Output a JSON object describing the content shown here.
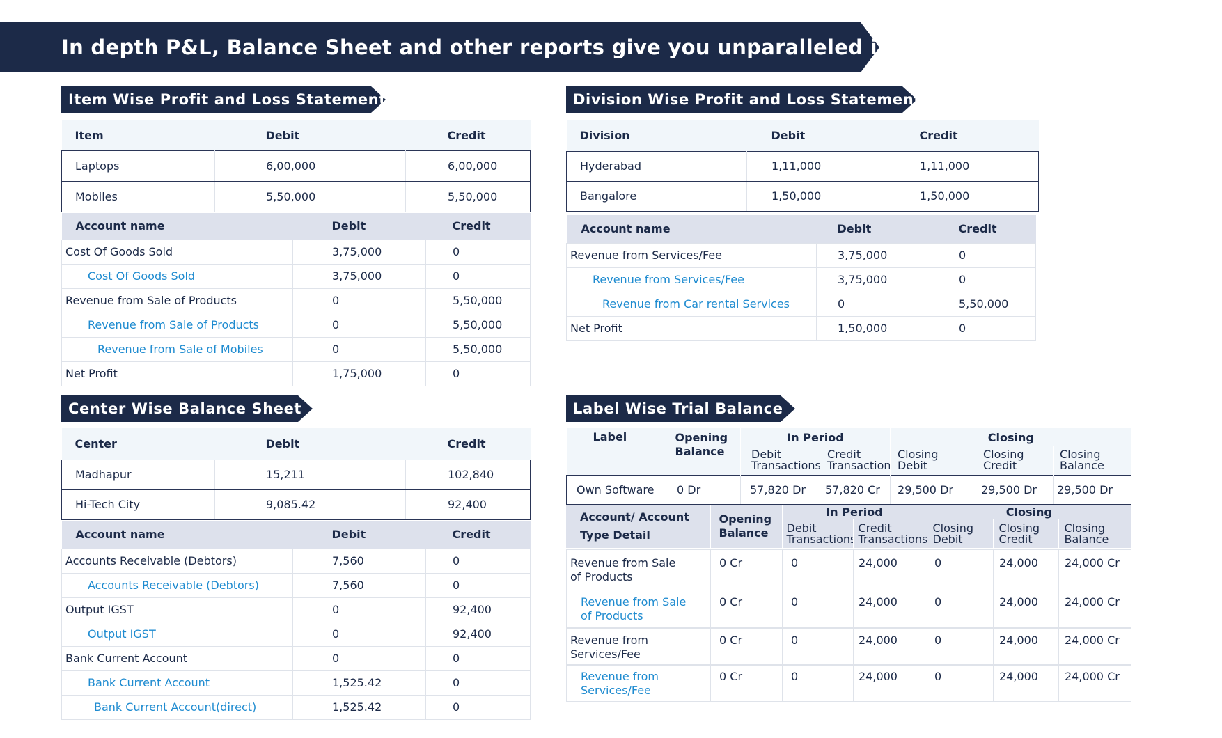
{
  "banner": {
    "title": "In depth P&L, Balance Sheet and other reports give you unparalleled insight"
  },
  "item_pl": {
    "title": "Item Wise Profit and Loss Statement",
    "headers": [
      "Item",
      "Debit",
      "Credit"
    ],
    "rows": [
      [
        "Laptops",
        "6,00,000",
        "6,00,000"
      ],
      [
        "Mobiles",
        "5,50,000",
        "5,50,000"
      ]
    ],
    "acc_headers": [
      "Account name",
      "Debit",
      "Credit"
    ],
    "acc_rows": [
      [
        "Cost Of Goods Sold",
        "3,75,000",
        "0"
      ],
      [
        "Cost Of Goods Sold",
        "3,75,000",
        "0"
      ],
      [
        "Revenue from Sale of Products",
        "0",
        "5,50,000"
      ],
      [
        "Revenue from Sale of Products",
        "0",
        "5,50,000"
      ],
      [
        "Revenue from Sale of Mobiles",
        "0",
        "5,50,000"
      ],
      [
        "Net Profit",
        "1,75,000",
        "0"
      ]
    ]
  },
  "division_pl": {
    "title": "Division Wise Profit and Loss Statement",
    "headers": [
      "Division",
      "Debit",
      "Credit"
    ],
    "rows": [
      [
        "Hyderabad",
        "1,11,000",
        "1,11,000"
      ],
      [
        "Bangalore",
        "1,50,000",
        "1,50,000"
      ]
    ],
    "acc_headers": [
      "Account name",
      "Debit",
      "Credit"
    ],
    "acc_rows": [
      [
        "Revenue from Services/Fee",
        "3,75,000",
        "0"
      ],
      [
        "Revenue from Services/Fee",
        "3,75,000",
        "0"
      ],
      [
        "Revenue from Car rental Services",
        "0",
        "5,50,000"
      ],
      [
        "Net Profit",
        "1,50,000",
        "0"
      ]
    ]
  },
  "center_bs": {
    "title": "Center Wise Balance Sheet",
    "headers": [
      "Center",
      "Debit",
      "Credit"
    ],
    "rows": [
      [
        "Madhapur",
        "15,211",
        "102,840"
      ],
      [
        "Hi-Tech City",
        "9,085.42",
        "92,400"
      ]
    ],
    "acc_headers": [
      "Account name",
      "Debit",
      "Credit"
    ],
    "acc_rows": [
      [
        "Accounts Receivable (Debtors)",
        "7,560",
        "0"
      ],
      [
        "Accounts Receivable (Debtors)",
        "7,560",
        "0"
      ],
      [
        "Output IGST",
        "0",
        "92,400"
      ],
      [
        "Output IGST",
        "0",
        "92,400"
      ],
      [
        "Bank Current Account",
        "0",
        "0"
      ],
      [
        "Bank Current Account",
        "1,525.42",
        "0"
      ],
      [
        "Bank Current Account(direct)",
        "1,525.42",
        "0"
      ]
    ]
  },
  "label_tb": {
    "title": "Label Wise Trial Balance",
    "h_label": "Label",
    "h_opening1": "Opening",
    "h_opening2": "Balance",
    "h_in_period": "In Period",
    "h_closing": "Closing",
    "h_debit_tx1": "Debit",
    "h_debit_tx2": "Transactions",
    "h_credit_tx1": "Credit",
    "h_credit_tx2": "Transactions",
    "h_cdebit1": "Closing",
    "h_cdebit2": "Debit",
    "h_ccredit1": "Closing",
    "h_ccredit2": "Credit",
    "h_cbal1": "Closing",
    "h_cbal2": "Balance",
    "row": [
      "Own Software",
      "0 Dr",
      "57,820 Dr",
      "57,820 Cr",
      "29,500 Dr",
      "29,500 Dr",
      "29,500 Dr"
    ],
    "a_h1": "Account/ Account",
    "a_h2": "Type Detail",
    "acc_rows": [
      [
        "Revenue from Sale",
        "of Products",
        "0 Cr",
        "0",
        "24,000",
        "0",
        "24,000",
        "24,000 Cr"
      ],
      [
        "Revenue from Sale",
        "of Products",
        "0 Cr",
        "0",
        "24,000",
        "0",
        "24,000",
        "24,000 Cr"
      ],
      [
        "Revenue from",
        "Services/Fee",
        "0 Cr",
        "0",
        "24,000",
        "0",
        "24,000",
        "24,000 Cr"
      ],
      [
        "Revenue from",
        "Services/Fee",
        "0 Cr",
        "0",
        "24,000",
        "0",
        "24,000",
        "24,000 Cr"
      ]
    ]
  },
  "colors": {
    "navy": "#1c2a48",
    "accent_blue": "#1e8bd0",
    "header_bg": "#dde1ec",
    "light_header_bg": "#f1f6fa"
  }
}
